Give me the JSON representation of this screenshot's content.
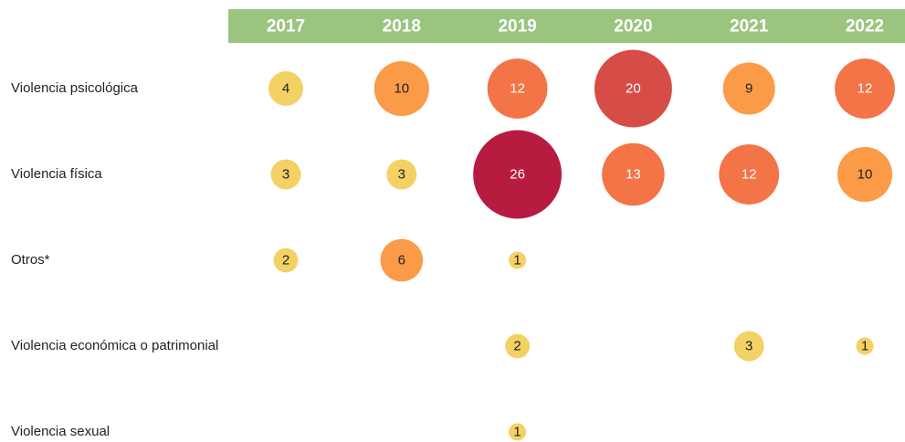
{
  "chart_data": {
    "type": "bubble",
    "categories": [
      "2017",
      "2018",
      "2019",
      "2020",
      "2021",
      "2022"
    ],
    "header_color": "#9bc57f",
    "series": [
      {
        "name": "Violencia psicológica",
        "values": [
          4,
          10,
          12,
          20,
          9,
          12
        ],
        "colors": [
          "#f4d165",
          "#fb9a47",
          "#f27447",
          "#d64c47",
          "#fb9a47",
          "#f27447"
        ]
      },
      {
        "name": "Violencia física",
        "values": [
          3,
          3,
          26,
          13,
          12,
          10
        ],
        "colors": [
          "#f4d165",
          "#f4d165",
          "#b71c40",
          "#f27447",
          "#f27447",
          "#fb9a47"
        ]
      },
      {
        "name": "Otros*",
        "values": [
          2,
          6,
          1,
          null,
          null,
          null
        ],
        "colors": [
          "#f4d165",
          "#fb9a47",
          "#f4d165",
          null,
          null,
          null
        ]
      },
      {
        "name": "Violencia económica o patrimonial",
        "values": [
          null,
          null,
          2,
          null,
          3,
          1
        ],
        "colors": [
          null,
          null,
          "#f4d165",
          null,
          "#f4d165",
          "#f4d165"
        ]
      },
      {
        "name": "Violencia sexual",
        "values": [
          null,
          null,
          1,
          null,
          null,
          null
        ],
        "colors": [
          null,
          null,
          "#f4d165",
          null,
          null,
          null
        ]
      }
    ]
  }
}
